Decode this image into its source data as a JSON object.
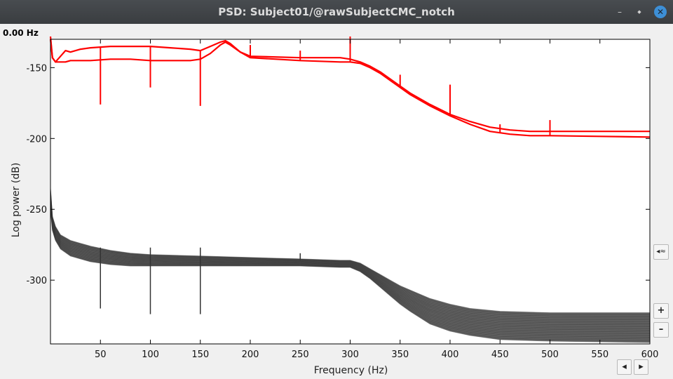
{
  "window": {
    "title": "PSD: Subject01/@rawSubjectCMC_notch",
    "minimize_glyph": "–",
    "maximize_glyph": "◆",
    "close_glyph": "✕"
  },
  "readout": {
    "frequency": "0.00 Hz"
  },
  "controls": {
    "display_mode_glyph": "◂≈",
    "zoom_in_glyph": "+",
    "zoom_out_glyph": "–",
    "scroll_left_glyph": "◂",
    "scroll_right_glyph": "▸"
  },
  "colors": {
    "red_series": "#ff0000",
    "gray_series": "#333333",
    "axes": "#000000",
    "plot_bg": "#ffffff"
  },
  "chart_data": {
    "type": "line",
    "xlabel": "Frequency (Hz)",
    "ylabel": "Log power   (dB)",
    "xlim": [
      0,
      600
    ],
    "ylim": [
      -345,
      -130
    ],
    "xticks": [
      50,
      100,
      150,
      200,
      250,
      300,
      350,
      400,
      450,
      500,
      550,
      600
    ],
    "xtick_labels": [
      "50",
      "100",
      "150",
      "200",
      "250",
      "300",
      "350",
      "400",
      "450",
      "500",
      "550",
      "600"
    ],
    "yticks": [
      -150,
      -200,
      -250,
      -300
    ],
    "ytick_labels": [
      "-150",
      "-200",
      "-250",
      "-300"
    ],
    "grid": false,
    "series": [
      {
        "color": "#ff0000",
        "x": [
          0,
          2,
          5,
          10,
          15,
          20,
          30,
          40,
          60,
          80,
          100,
          120,
          140,
          150,
          160,
          170,
          175,
          180,
          190,
          200,
          250,
          290,
          300,
          310,
          320,
          330,
          340,
          350,
          360,
          380,
          400,
          420,
          440,
          460,
          480,
          500,
          550,
          600
        ],
        "y": [
          -130,
          -143,
          -146,
          -142,
          -138,
          -139,
          -137,
          -136,
          -135,
          -135,
          -135,
          -136,
          -137,
          -138,
          -135,
          -132,
          -131,
          -133,
          -139,
          -142,
          -143,
          -143,
          -144,
          -146,
          -149,
          -153,
          -158,
          -163,
          -168,
          -176,
          -183,
          -188,
          -192,
          -194,
          -195,
          -195,
          -195,
          -195
        ]
      },
      {
        "color": "#ff0000",
        "x": [
          0,
          2,
          5,
          10,
          15,
          20,
          30,
          40,
          60,
          80,
          100,
          120,
          140,
          150,
          160,
          170,
          175,
          180,
          190,
          200,
          250,
          290,
          300,
          310,
          320,
          330,
          340,
          350,
          360,
          380,
          400,
          420,
          440,
          460,
          480,
          500,
          550,
          600
        ],
        "y": [
          -128,
          -143,
          -146,
          -146,
          -146,
          -145,
          -145,
          -145,
          -144,
          -144,
          -145,
          -145,
          -145,
          -144,
          -140,
          -134,
          -132,
          -134,
          -139,
          -143,
          -145,
          -146,
          -146,
          -147,
          -150,
          -154,
          -159,
          -164,
          -169,
          -177,
          -184,
          -190,
          -195,
          -197,
          -198,
          -198,
          -198.5,
          -199
        ]
      },
      {
        "color": "#333333",
        "name": "",
        "x": [
          0,
          2,
          5,
          10,
          20,
          30,
          40,
          60,
          80,
          100,
          150,
          200,
          250,
          290,
          300,
          310,
          320,
          330,
          340,
          350,
          360,
          380,
          400,
          420,
          450,
          500,
          550,
          600
        ],
        "y_upper": [
          -235,
          -255,
          -262,
          -268,
          -272,
          -274,
          -276,
          -279,
          -281,
          -282,
          -283,
          -284,
          -285,
          -286,
          -286,
          -288,
          -292,
          -296,
          -300,
          -304,
          -307,
          -313,
          -317,
          -320,
          -322,
          -323,
          -323,
          -323
        ],
        "y_lower": [
          -250,
          -265,
          -272,
          -278,
          -283,
          -285,
          -287,
          -289,
          -290,
          -290,
          -290,
          -290,
          -290,
          -291,
          -291,
          -294,
          -299,
          -305,
          -311,
          -317,
          -322,
          -331,
          -336,
          -339,
          -342,
          -343,
          -343.5,
          -344
        ]
      }
    ],
    "spikes_red": [
      {
        "x": 50,
        "y": -176
      },
      {
        "x": 100,
        "y": -164
      },
      {
        "x": 150,
        "y": -177
      },
      {
        "x": 200,
        "y": -134
      },
      {
        "x": 250,
        "y": -138
      },
      {
        "x": 300,
        "y": -128
      },
      {
        "x": 350,
        "y": -155
      },
      {
        "x": 400,
        "y": -162
      },
      {
        "x": 450,
        "y": -190
      },
      {
        "x": 500,
        "y": -187
      }
    ],
    "spikes_gray": [
      {
        "x": 50,
        "y": -320
      },
      {
        "x": 100,
        "y": -324
      },
      {
        "x": 150,
        "y": -324
      },
      {
        "x": 250,
        "y": -281
      }
    ]
  }
}
